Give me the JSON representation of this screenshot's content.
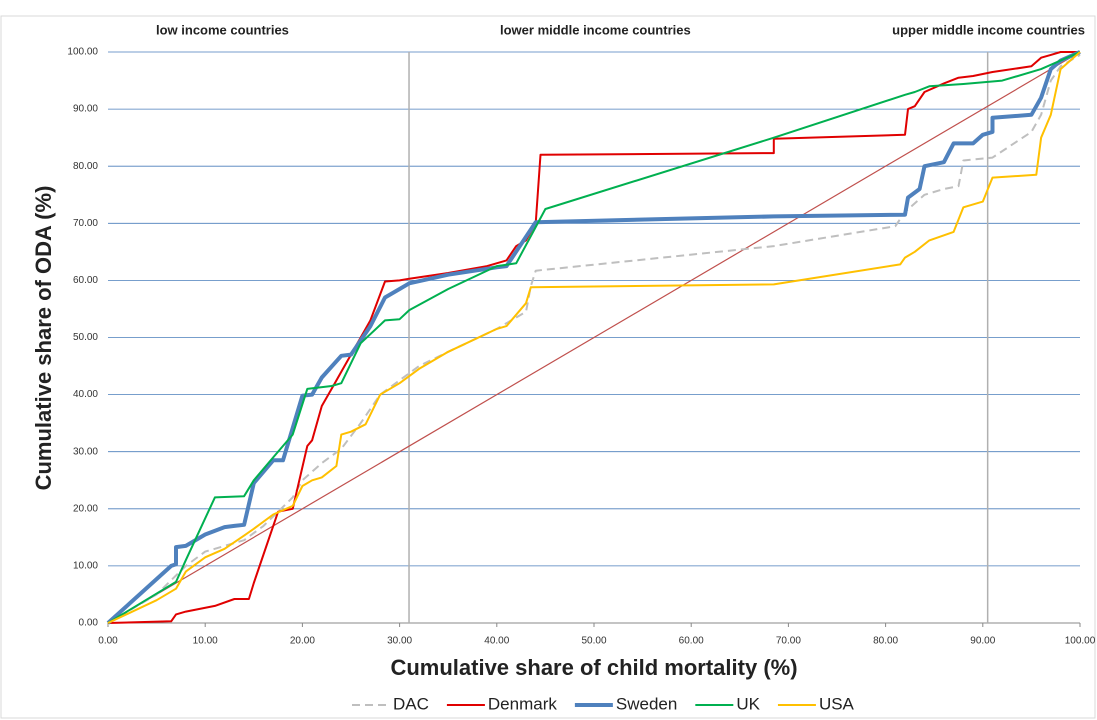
{
  "chart_data": {
    "type": "line",
    "xlabel": "Cumulative share of child mortality (%)",
    "ylabel": "Cumulative share of ODA  (%)",
    "annotations": [
      "low income countries",
      "lower middle  income countries",
      "upper  middle  income countries"
    ],
    "group_boundaries": [
      30.97,
      90.5
    ],
    "xlim": [
      0,
      100
    ],
    "ylim": [
      0,
      100
    ],
    "xticks": [
      {
        "value": 0,
        "label": "0.00"
      },
      {
        "value": 10,
        "label": "10.00"
      },
      {
        "value": 20,
        "label": "20.00"
      },
      {
        "value": 30,
        "label": "30.00"
      },
      {
        "value": 40,
        "label": "40.00"
      },
      {
        "value": 50,
        "label": "50.00"
      },
      {
        "value": 60,
        "label": "60.00"
      },
      {
        "value": 70,
        "label": "70.00"
      },
      {
        "value": 80,
        "label": "80.00"
      },
      {
        "value": 90,
        "label": "90.00"
      },
      {
        "value": 100,
        "label": "100.00"
      }
    ],
    "yticks": [
      {
        "value": 0,
        "label": "0.00"
      },
      {
        "value": 10,
        "label": "10.00"
      },
      {
        "value": 20,
        "label": "20.00"
      },
      {
        "value": 30,
        "label": "30.00"
      },
      {
        "value": 40,
        "label": "40.00"
      },
      {
        "value": 50,
        "label": "50.00"
      },
      {
        "value": 60,
        "label": "60.00"
      },
      {
        "value": 70,
        "label": "70.00"
      },
      {
        "value": 80,
        "label": "80.00"
      },
      {
        "value": 90,
        "label": "90.00"
      },
      {
        "value": 100,
        "label": "100.00"
      }
    ],
    "grid": true,
    "series": [
      {
        "color": "#c0504d",
        "width": 1.2,
        "x": [
          0,
          100
        ],
        "values": [
          0,
          100
        ]
      },
      {
        "name": "DAC",
        "color": "#bfbfbf",
        "width": 2,
        "dashed": true,
        "x": [
          0,
          5,
          8,
          10,
          14,
          16,
          19,
          20,
          22,
          24,
          26,
          28,
          30,
          32,
          35,
          40,
          42,
          43,
          43.5,
          44,
          68.5,
          81,
          82,
          84,
          86,
          87.5,
          88,
          91,
          95,
          96,
          97,
          98,
          100
        ],
        "values": [
          0,
          5,
          10,
          12.5,
          14.5,
          17,
          22,
          25,
          28,
          30.5,
          35,
          40,
          42.5,
          45,
          47.5,
          51.5,
          53.5,
          54.5,
          59,
          61.7,
          66,
          69.5,
          72,
          75,
          76,
          76.5,
          81,
          81.5,
          86,
          89,
          95,
          97.5,
          99.5
        ]
      },
      {
        "name": "Denmark",
        "color": "#e00000",
        "width": 2,
        "x": [
          0,
          6.5,
          7,
          8,
          11,
          13,
          14.5,
          15,
          16,
          17.5,
          19,
          20.5,
          21,
          22,
          23,
          24,
          25,
          27,
          28.5,
          30,
          31,
          35,
          39,
          41,
          42,
          43,
          44,
          44.5,
          68.5,
          68.5,
          82,
          82.3,
          83,
          84,
          86,
          87.5,
          89,
          91,
          95,
          96,
          97,
          98,
          100
        ],
        "values": [
          0,
          0.3,
          1.5,
          2,
          3,
          4.2,
          4.2,
          7,
          12,
          19.5,
          20,
          31,
          32,
          38,
          41,
          44,
          47,
          53,
          59.8,
          60,
          60.3,
          61.3,
          62.5,
          63.5,
          66,
          67,
          70,
          82,
          82.3,
          84.8,
          85.5,
          90,
          90.5,
          93,
          94.5,
          95.5,
          95.8,
          96.5,
          97.5,
          99,
          99.5,
          100,
          100
        ]
      },
      {
        "name": "Sweden",
        "color": "#4f81bd",
        "width": 4,
        "x": [
          0,
          6.5,
          7,
          7,
          8,
          10,
          12,
          13,
          14,
          15,
          17,
          18,
          20,
          21,
          22,
          24,
          25,
          27,
          28.5,
          30,
          31,
          35,
          40,
          41,
          44,
          68.5,
          82,
          82.3,
          83.5,
          84,
          86,
          87,
          89,
          90,
          91,
          91,
          95,
          96,
          97,
          98,
          100
        ],
        "values": [
          0,
          10,
          10.3,
          13.3,
          13.5,
          15.5,
          16.8,
          17,
          17.2,
          24.5,
          28.5,
          28.5,
          39.8,
          40,
          43,
          46.8,
          47,
          52,
          57,
          58.5,
          59.5,
          61,
          62.3,
          62.5,
          70.2,
          71.2,
          71.5,
          74.5,
          76,
          80,
          80.7,
          84,
          84,
          85.5,
          86,
          88.5,
          89,
          92,
          97,
          98.5,
          100
        ]
      },
      {
        "name": "UK",
        "color": "#00b050",
        "width": 2,
        "x": [
          0,
          7,
          8,
          11,
          14,
          15,
          17,
          19,
          20.5,
          23,
          24,
          26,
          28.5,
          30,
          31,
          35,
          40,
          42,
          45,
          68.5,
          82,
          83,
          84.5,
          88,
          92,
          96,
          100
        ],
        "values": [
          0,
          7.2,
          11,
          22,
          22.2,
          25,
          29,
          33,
          41,
          41.5,
          42,
          49,
          53,
          53.2,
          54.8,
          58.5,
          62.5,
          63,
          72.5,
          85,
          92.5,
          93,
          94,
          94.4,
          95,
          97,
          100
        ]
      },
      {
        "name": "USA",
        "color": "#ffc000",
        "width": 2,
        "x": [
          0,
          5,
          7,
          8,
          10,
          12,
          14,
          15,
          17,
          19,
          20,
          21,
          22,
          23.5,
          24,
          25,
          26.5,
          28,
          30,
          32,
          35,
          40,
          41,
          42,
          43,
          43.5,
          68.5,
          81.5,
          82,
          83,
          84.5,
          87,
          88,
          90,
          91,
          95.5,
          96,
          97,
          98,
          100
        ],
        "values": [
          0,
          4,
          6,
          9,
          11.5,
          13,
          15.3,
          16.5,
          19,
          20.5,
          24,
          25,
          25.5,
          27.5,
          33,
          33.5,
          34.8,
          40,
          42,
          44.5,
          47.5,
          51.5,
          52,
          54,
          56,
          58.8,
          59.3,
          62.8,
          64,
          65,
          67,
          68.5,
          72.8,
          73.8,
          78,
          78.5,
          85,
          89,
          97,
          100
        ]
      }
    ]
  }
}
